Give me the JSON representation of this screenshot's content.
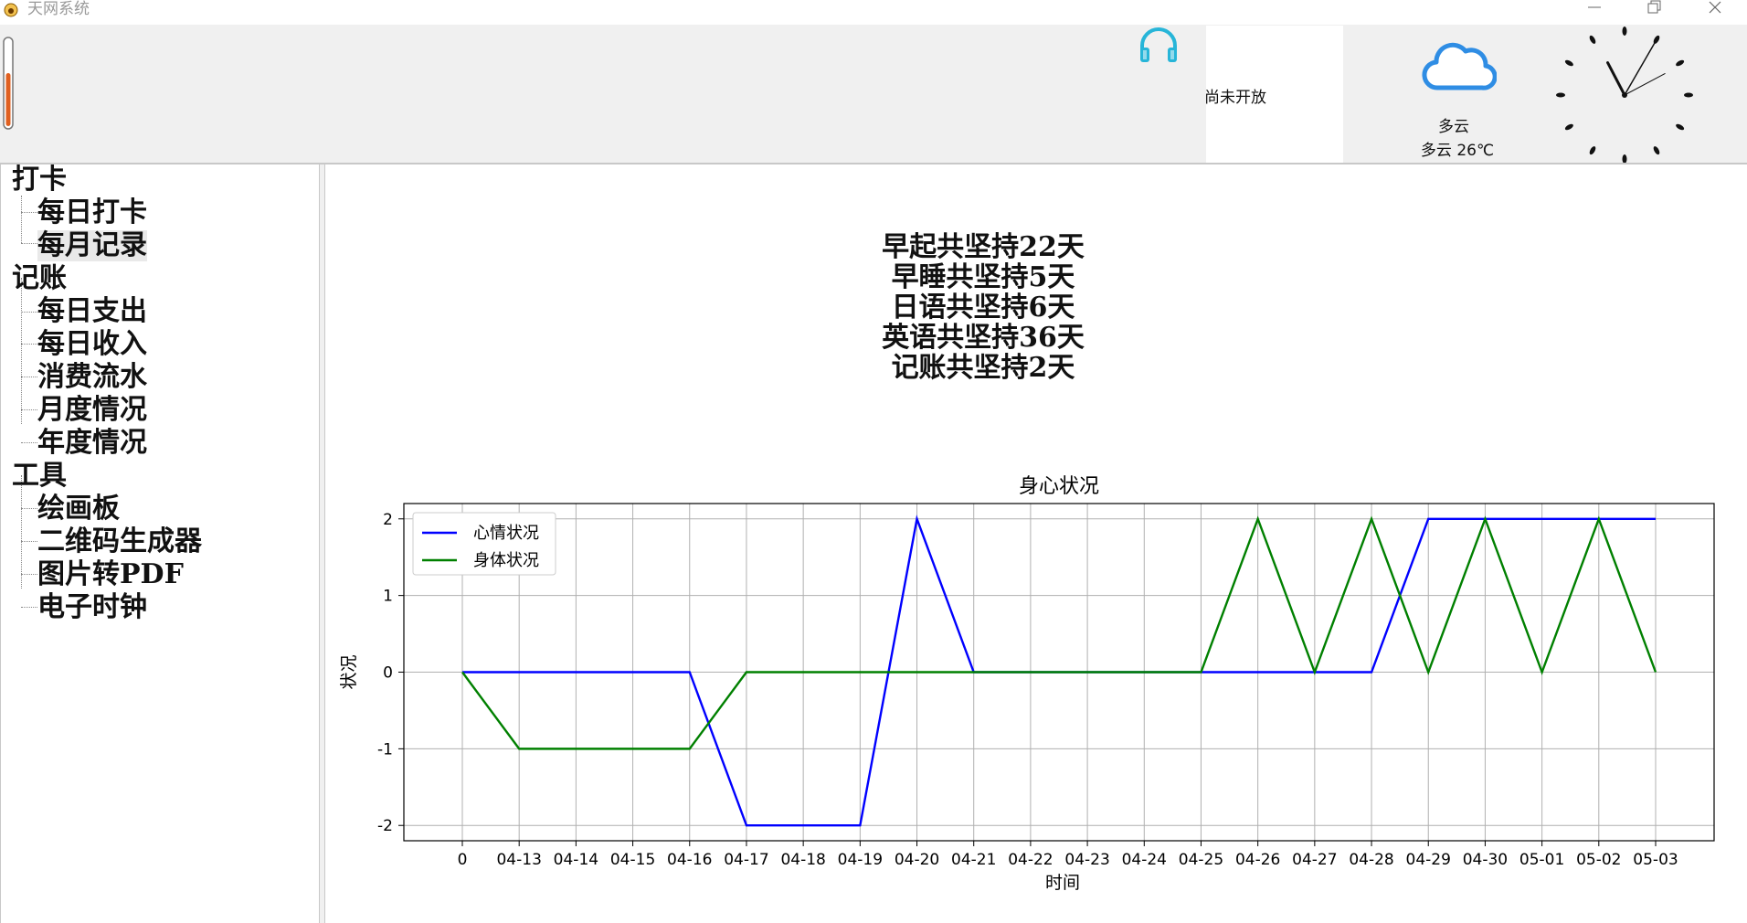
{
  "window": {
    "title": "天网系统"
  },
  "top": {
    "not_open_text": "尚未开放",
    "weather_condition": "多云",
    "weather_detail": "多云   26℃",
    "clock_time": "11:05"
  },
  "tree": {
    "groups": [
      {
        "label": "打卡",
        "items": [
          "每日打卡",
          "每月记录"
        ]
      },
      {
        "label": "记账",
        "items": [
          "每日支出",
          "每日收入",
          "消费流水",
          "月度情况",
          "年度情况"
        ]
      },
      {
        "label": "工具",
        "items": [
          "绘画板",
          "二维码生成器",
          "图片转PDF",
          "电子时钟"
        ]
      }
    ],
    "selected": "每月记录"
  },
  "summary": {
    "lines": [
      "早起共坚持22天",
      "早睡共坚持5天",
      "日语共坚持6天",
      "英语共坚持36天",
      "记账共坚持2天"
    ]
  },
  "chart_data": {
    "type": "line",
    "title": "身心状况",
    "xlabel": "时间",
    "ylabel": "状况",
    "categories": [
      "0",
      "04-13",
      "04-14",
      "04-15",
      "04-16",
      "04-17",
      "04-18",
      "04-19",
      "04-20",
      "04-21",
      "04-22",
      "04-23",
      "04-24",
      "04-25",
      "04-26",
      "04-27",
      "04-28",
      "04-29",
      "04-30",
      "05-01",
      "05-02",
      "05-03"
    ],
    "yticks": [
      -2,
      -1,
      0,
      1,
      2
    ],
    "ylim": [
      -2.2,
      2.2
    ],
    "grid": true,
    "legend": "top-left",
    "series": [
      {
        "name": "心情状况",
        "color": "#0000ff",
        "values": [
          0,
          0,
          0,
          0,
          0,
          -2,
          -2,
          -2,
          2,
          0,
          0,
          0,
          0,
          0,
          0,
          0,
          0,
          2,
          2,
          2,
          2,
          2
        ]
      },
      {
        "name": "身体状况",
        "color": "#008000",
        "values": [
          0,
          -1,
          -1,
          -1,
          -1,
          0,
          0,
          0,
          0,
          0,
          0,
          0,
          0,
          0,
          2,
          0,
          2,
          0,
          2,
          0,
          2,
          0
        ]
      }
    ]
  }
}
